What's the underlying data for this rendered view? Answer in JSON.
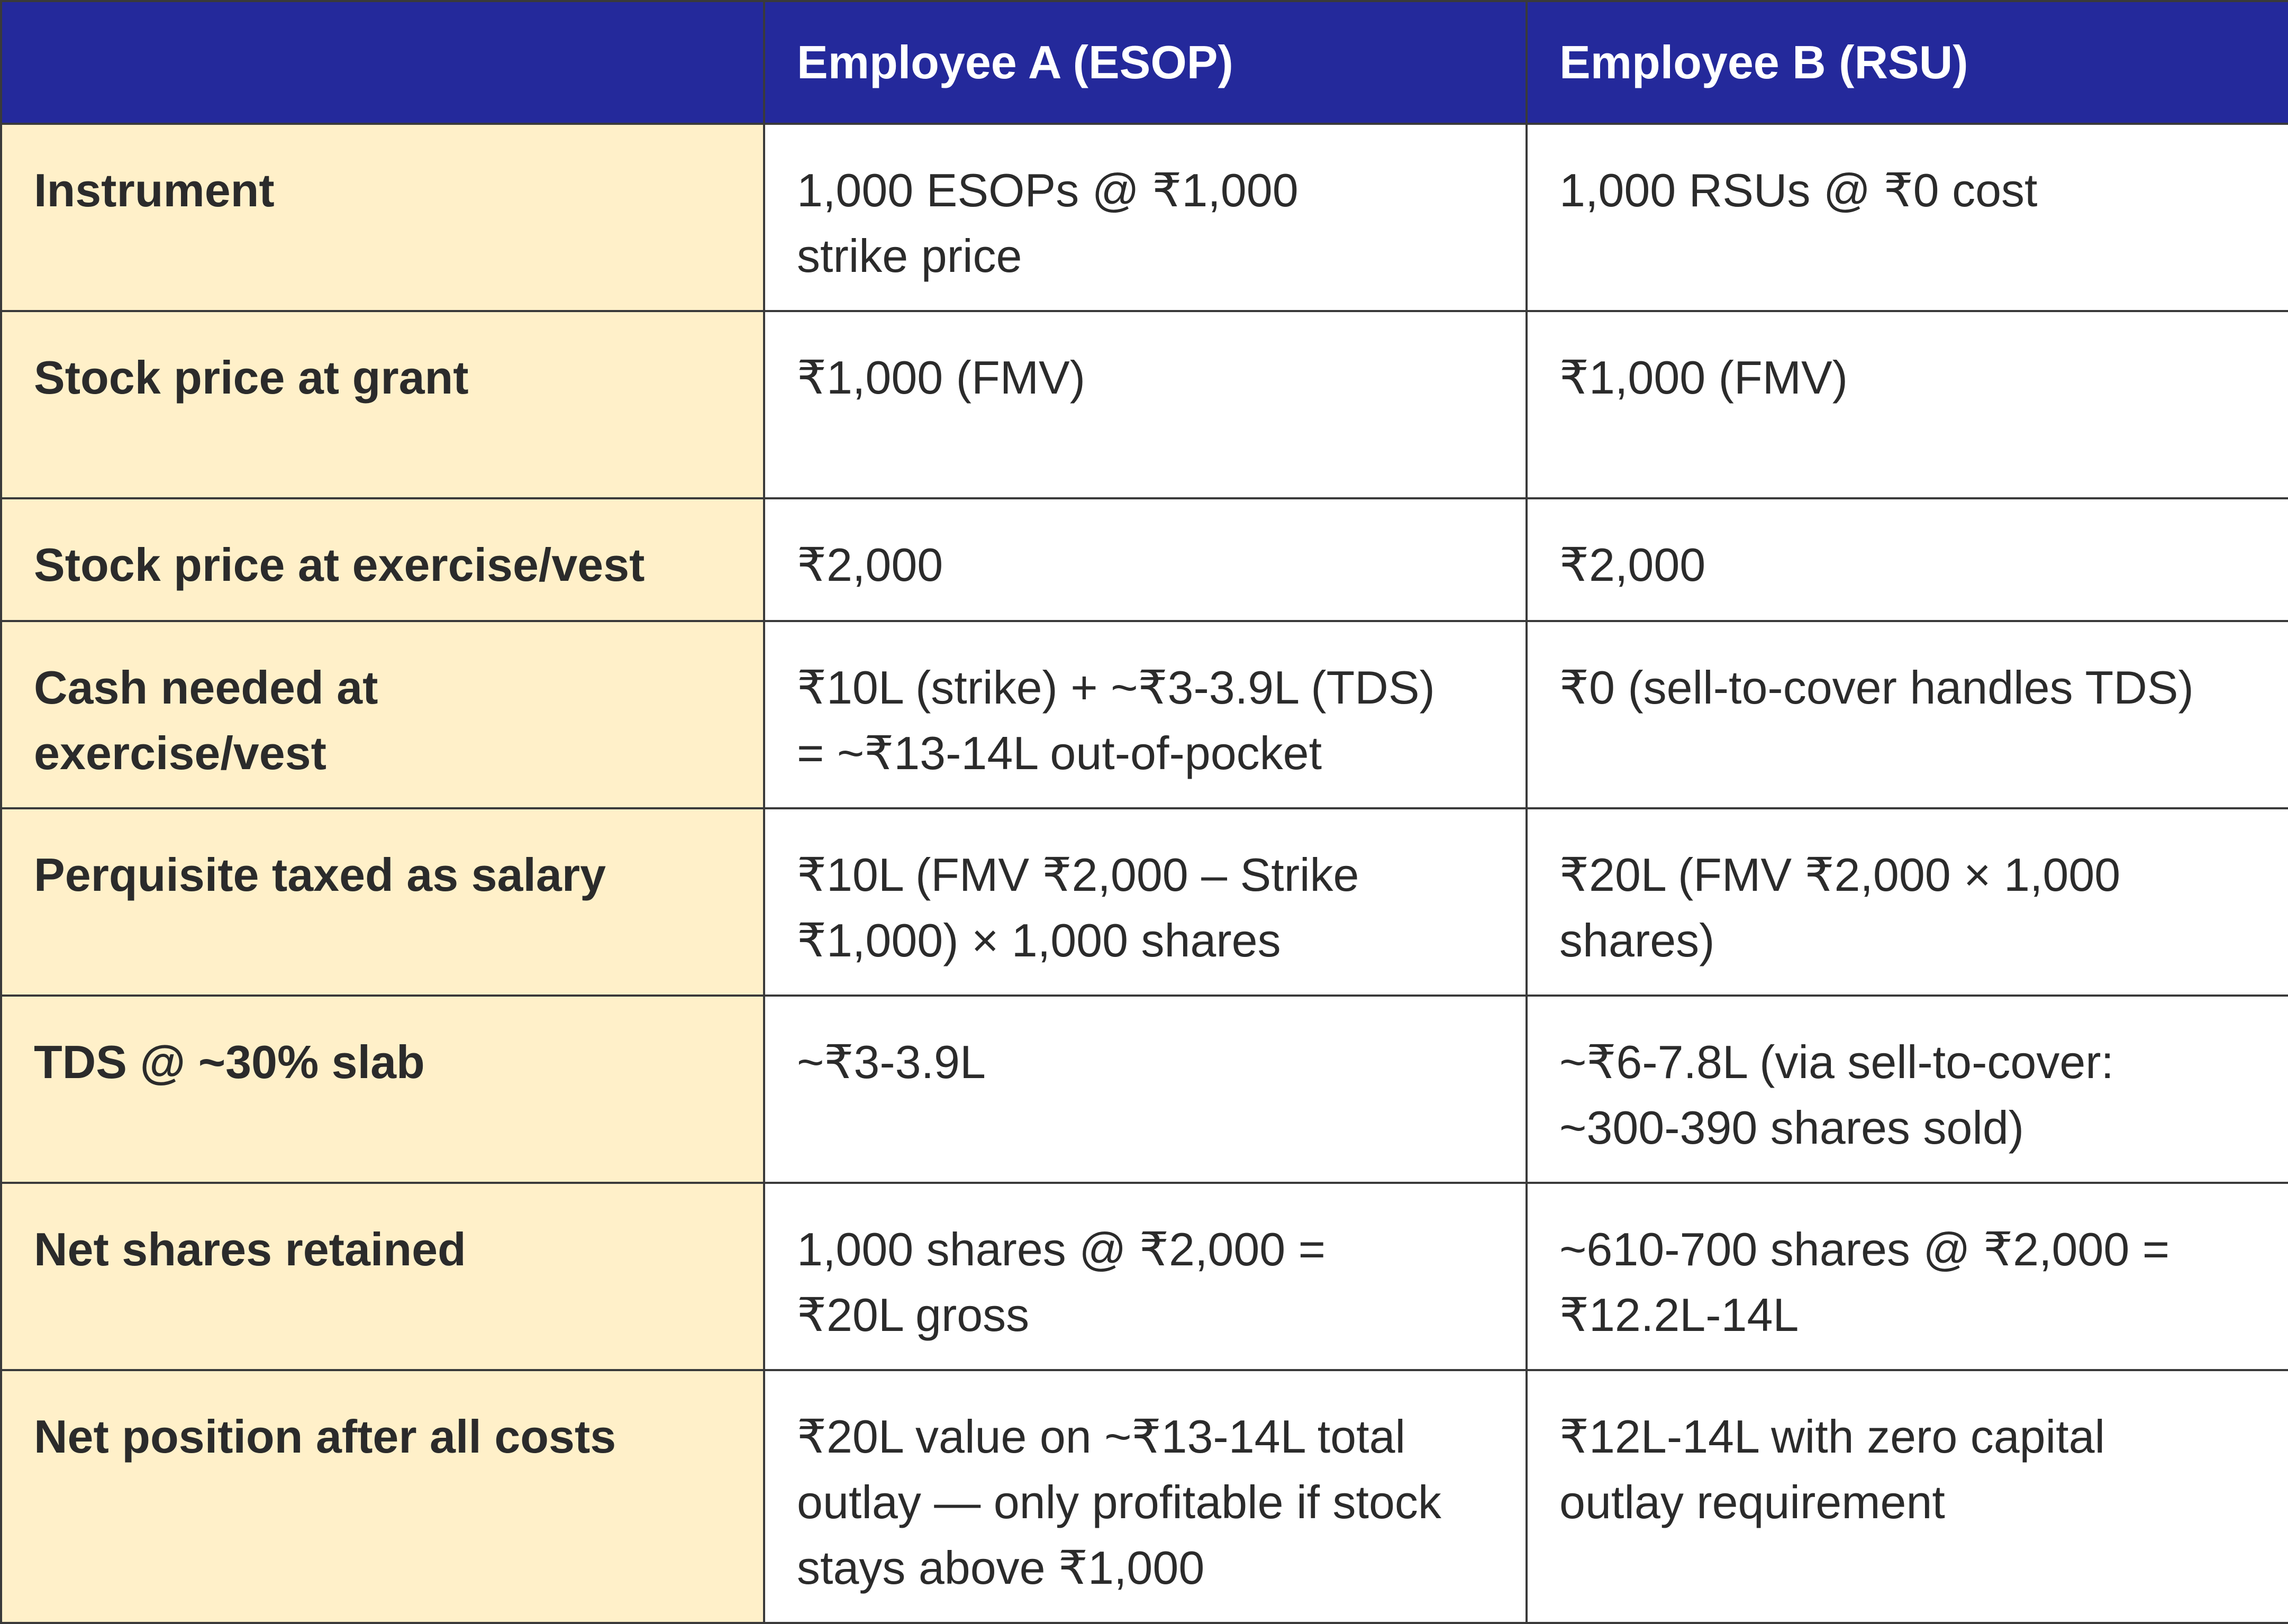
{
  "table": {
    "headers": [
      "",
      "Employee A (ESOP)",
      "Employee B (RSU)"
    ],
    "rows": [
      {
        "label": "Instrument",
        "a": "1,000 ESOPs @ ₹1,000\nstrike price",
        "b": "1,000 RSUs @ ₹0 cost"
      },
      {
        "label": "Stock price at grant",
        "a": "₹1,000 (FMV)",
        "b": "₹1,000 (FMV)"
      },
      {
        "label": "Stock price at exercise/vest",
        "a": "₹2,000",
        "b": "₹2,000"
      },
      {
        "label": "Cash needed at\nexercise/vest",
        "a": "₹10L (strike) + ~₹3-3.9L (TDS)\n= ~₹13-14L out-of-pocket",
        "b": "₹0 (sell-to-cover handles TDS)"
      },
      {
        "label": "Perquisite taxed as salary",
        "a": "₹10L (FMV ₹2,000 – Strike\n₹1,000) × 1,000 shares",
        "b": "₹20L (FMV ₹2,000 × 1,000\nshares)"
      },
      {
        "label": "TDS @ ~30% slab",
        "a": "~₹3-3.9L",
        "b": "~₹6-7.8L (via sell-to-cover:\n~300-390 shares sold)"
      },
      {
        "label": "Net shares retained",
        "a": "1,000 shares @ ₹2,000 =\n₹20L gross",
        "b": "~610-700 shares @ ₹2,000 =\n₹12.2L-14L"
      },
      {
        "label": "Net position after all costs",
        "a": "₹20L value on ~₹13-14L total\noutlay — only profitable if stock\nstays above ₹1,000",
        "b": "₹12L-14L   with zero capital\noutlay requirement"
      }
    ]
  },
  "colors": {
    "header_bg": "#24299b",
    "label_bg": "#fff0c9",
    "value_bg": "#ffffff",
    "border": "#3a3a3a",
    "text": "#2b2b2b"
  }
}
